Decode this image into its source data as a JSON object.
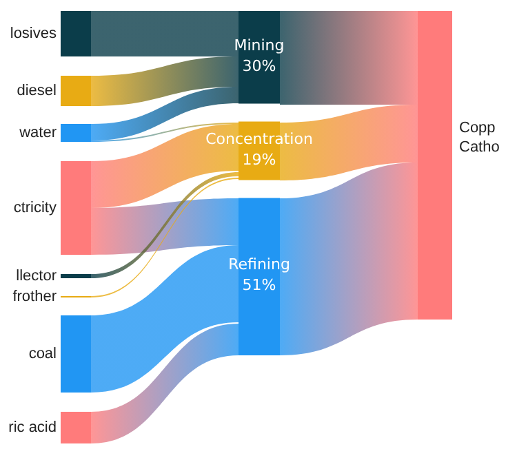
{
  "chart_data": {
    "type": "other",
    "categories": [
      "Mining",
      "Concentration",
      "Refining"
    ],
    "values": [
      30,
      19,
      51
    ],
    "value_labels": [
      "30%",
      "19%",
      "51%"
    ],
    "colors": [
      "#0b3d4a",
      "#e8ab14",
      "#2196f3"
    ],
    "annotations": [
      "losives",
      "diesel",
      "water",
      "ctricity",
      "llector",
      "frother",
      "coal",
      "ric acid",
      "Copp Catho"
    ]
  }
}
